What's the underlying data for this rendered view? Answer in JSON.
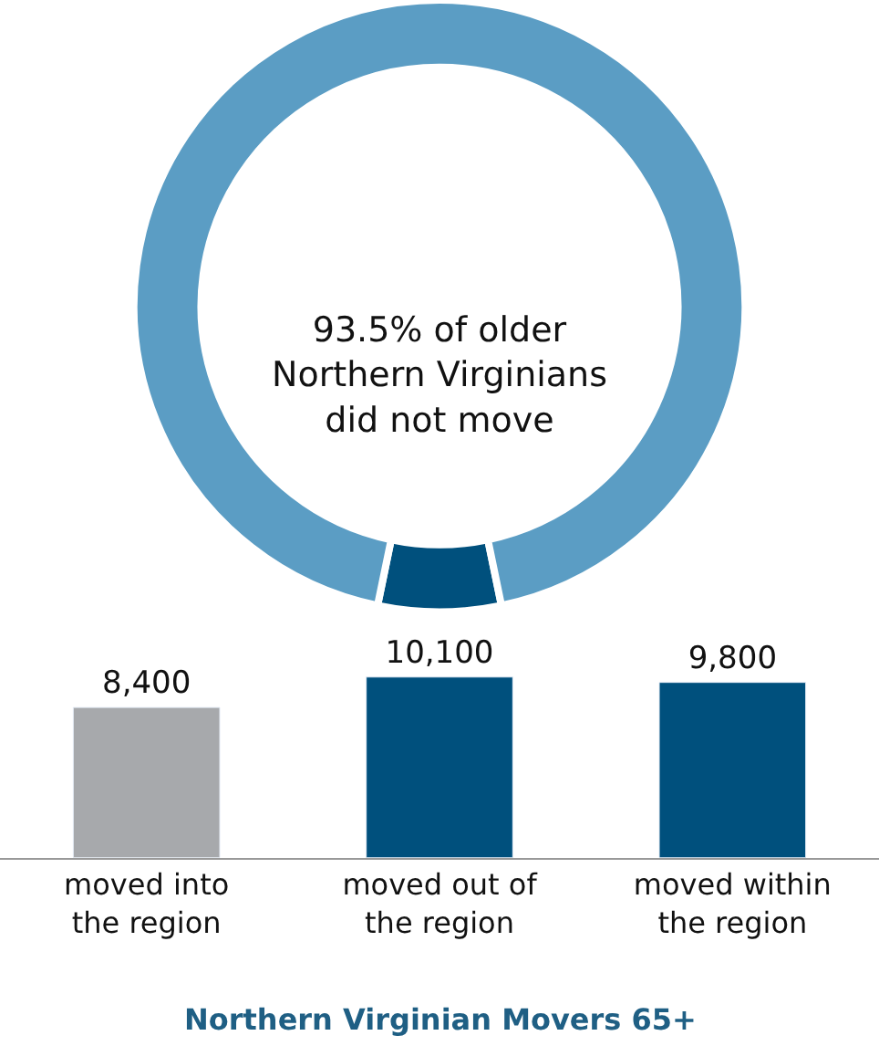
{
  "chart_data": [
    {
      "type": "donut",
      "categories": [
        null,
        null
      ],
      "values": [
        6.5,
        93.5
      ],
      "colors": [
        "#00507d",
        "#5b9dc4"
      ],
      "annotations": [
        "93.5% of older\nNorthern Virginians\ndid not move"
      ]
    },
    {
      "type": "bar",
      "title": "Northern Virginian Movers 65+",
      "categories": [
        "moved into\nthe region",
        "moved out of\nthe region",
        "moved within\nthe region"
      ],
      "values": [
        8400,
        10100,
        9800
      ],
      "colors": [
        "#a7a9ac",
        "#00507d",
        "#00507d"
      ],
      "value_labels": [
        "8,400",
        "10,100",
        "9,800"
      ]
    }
  ]
}
